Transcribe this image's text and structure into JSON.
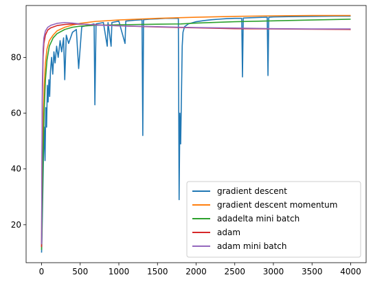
{
  "chart_data": {
    "type": "line",
    "title": "",
    "xlabel": "",
    "ylabel": "",
    "xlim": [
      -200,
      4200
    ],
    "ylim": [
      6.4,
      98.6
    ],
    "xticks": [
      0,
      500,
      1000,
      1500,
      2000,
      2500,
      3000,
      3500,
      4000
    ],
    "yticks": [
      20,
      40,
      60,
      80
    ],
    "grid": false,
    "legend_position": "lower-right",
    "series": [
      {
        "name": "gradient descent",
        "color": "#1f77b4",
        "points": [
          [
            0,
            10
          ],
          [
            5,
            15
          ],
          [
            15,
            30
          ],
          [
            25,
            45
          ],
          [
            35,
            55
          ],
          [
            45,
            43
          ],
          [
            55,
            62
          ],
          [
            65,
            55
          ],
          [
            75,
            70
          ],
          [
            85,
            64
          ],
          [
            95,
            72
          ],
          [
            105,
            66
          ],
          [
            115,
            75
          ],
          [
            130,
            80
          ],
          [
            145,
            74
          ],
          [
            160,
            82
          ],
          [
            175,
            78
          ],
          [
            195,
            84
          ],
          [
            215,
            80
          ],
          [
            240,
            86
          ],
          [
            260,
            82
          ],
          [
            285,
            87
          ],
          [
            300,
            72
          ],
          [
            320,
            88
          ],
          [
            350,
            85
          ],
          [
            400,
            89
          ],
          [
            450,
            90
          ],
          [
            480,
            76
          ],
          [
            520,
            91
          ],
          [
            600,
            91.5
          ],
          [
            680,
            92
          ],
          [
            690,
            63
          ],
          [
            705,
            92
          ],
          [
            800,
            92.5
          ],
          [
            850,
            84
          ],
          [
            860,
            92.5
          ],
          [
            900,
            84
          ],
          [
            910,
            92.5
          ],
          [
            1000,
            93
          ],
          [
            1080,
            85
          ],
          [
            1090,
            93
          ],
          [
            1200,
            93.3
          ],
          [
            1300,
            93.5
          ],
          [
            1310,
            52
          ],
          [
            1320,
            93.5
          ],
          [
            1400,
            93.7
          ],
          [
            1500,
            93.8
          ],
          [
            1600,
            94
          ],
          [
            1700,
            94
          ],
          [
            1770,
            94
          ],
          [
            1780,
            29
          ],
          [
            1790,
            60
          ],
          [
            1800,
            49
          ],
          [
            1810,
            66
          ],
          [
            1820,
            84
          ],
          [
            1830,
            89
          ],
          [
            1850,
            91
          ],
          [
            1900,
            92
          ],
          [
            1950,
            92.4
          ],
          [
            2000,
            92.8
          ],
          [
            2100,
            93.2
          ],
          [
            2200,
            93.5
          ],
          [
            2300,
            93.7
          ],
          [
            2400,
            93.9
          ],
          [
            2500,
            94
          ],
          [
            2590,
            94
          ],
          [
            2600,
            73
          ],
          [
            2610,
            94.1
          ],
          [
            2700,
            94.2
          ],
          [
            2800,
            94.3
          ],
          [
            2900,
            94.4
          ],
          [
            2920,
            94.4
          ],
          [
            2930,
            73.5
          ],
          [
            2940,
            94.4
          ],
          [
            3000,
            94.5
          ],
          [
            3200,
            94.6
          ],
          [
            3500,
            94.7
          ],
          [
            3800,
            94.8
          ],
          [
            4000,
            94.8
          ]
        ]
      },
      {
        "name": "gradient descent momentum",
        "color": "#ff7f0e",
        "points": [
          [
            0,
            12
          ],
          [
            10,
            35
          ],
          [
            20,
            55
          ],
          [
            35,
            70
          ],
          [
            50,
            78
          ],
          [
            70,
            83
          ],
          [
            100,
            86
          ],
          [
            150,
            88
          ],
          [
            200,
            89.5
          ],
          [
            300,
            90.8
          ],
          [
            400,
            91.6
          ],
          [
            500,
            92.2
          ],
          [
            700,
            92.9
          ],
          [
            1000,
            93.4
          ],
          [
            1500,
            94
          ],
          [
            2000,
            94.4
          ],
          [
            2500,
            94.7
          ],
          [
            3000,
            94.9
          ],
          [
            3500,
            95
          ],
          [
            4000,
            95
          ]
        ]
      },
      {
        "name": "adadelta mini batch",
        "color": "#2ca02c",
        "points": [
          [
            0,
            11
          ],
          [
            10,
            28
          ],
          [
            20,
            45
          ],
          [
            35,
            62
          ],
          [
            50,
            72
          ],
          [
            70,
            79
          ],
          [
            100,
            84
          ],
          [
            150,
            87
          ],
          [
            200,
            88.5
          ],
          [
            300,
            90
          ],
          [
            400,
            90.8
          ],
          [
            500,
            91.2
          ],
          [
            700,
            91.5
          ],
          [
            1000,
            91.7
          ],
          [
            1500,
            91.9
          ],
          [
            1800,
            92
          ],
          [
            2000,
            92.3
          ],
          [
            2500,
            92.8
          ],
          [
            3000,
            93.1
          ],
          [
            3500,
            93.4
          ],
          [
            4000,
            93.7
          ]
        ]
      },
      {
        "name": "adam",
        "color": "#d62728",
        "points": [
          [
            0,
            12
          ],
          [
            5,
            40
          ],
          [
            10,
            65
          ],
          [
            20,
            80
          ],
          [
            30,
            85
          ],
          [
            50,
            88
          ],
          [
            80,
            89.8
          ],
          [
            120,
            90.6
          ],
          [
            200,
            91.4
          ],
          [
            300,
            91.8
          ],
          [
            400,
            92
          ],
          [
            500,
            91.9
          ],
          [
            700,
            91.7
          ],
          [
            1000,
            91.3
          ],
          [
            1500,
            90.9
          ],
          [
            2000,
            90.6
          ],
          [
            2500,
            90.3
          ],
          [
            3000,
            90.2
          ],
          [
            3500,
            90.1
          ],
          [
            4000,
            90
          ]
        ]
      },
      {
        "name": "adam mini batch",
        "color": "#9467bd",
        "points": [
          [
            0,
            13
          ],
          [
            5,
            45
          ],
          [
            10,
            70
          ],
          [
            20,
            83
          ],
          [
            30,
            87
          ],
          [
            50,
            89.5
          ],
          [
            80,
            90.8
          ],
          [
            120,
            91.5
          ],
          [
            200,
            92.2
          ],
          [
            300,
            92.5
          ],
          [
            400,
            92.3
          ],
          [
            500,
            92
          ],
          [
            700,
            91.6
          ],
          [
            1000,
            91.3
          ],
          [
            1500,
            91
          ],
          [
            2000,
            90.7
          ],
          [
            2500,
            90.5
          ],
          [
            3000,
            90.3
          ],
          [
            3500,
            90.2
          ],
          [
            4000,
            90.2
          ]
        ]
      }
    ]
  }
}
